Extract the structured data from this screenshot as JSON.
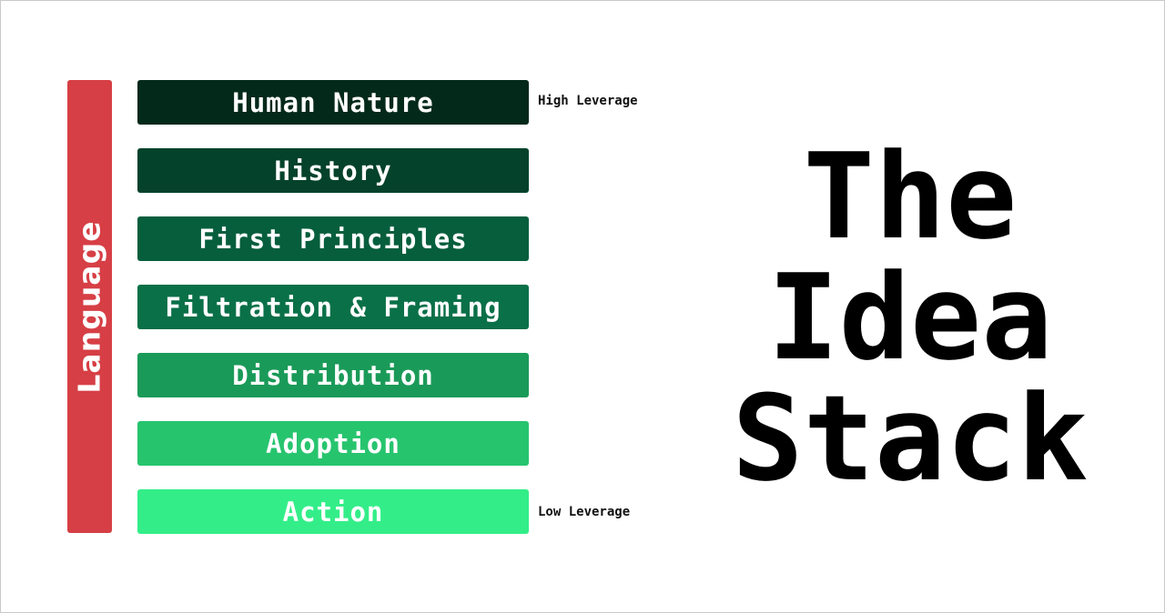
{
  "side_label": {
    "text": "Language",
    "color": "#d63f45"
  },
  "layers": [
    {
      "label": "Human Nature",
      "color": "#03291b"
    },
    {
      "label": "History",
      "color": "#04422b"
    },
    {
      "label": "First Principles",
      "color": "#065e3c"
    },
    {
      "label": "Filtration & Framing",
      "color": "#0a7048"
    },
    {
      "label": "Distribution",
      "color": "#1a9a58"
    },
    {
      "label": "Adoption",
      "color": "#27c46e"
    },
    {
      "label": "Action",
      "color": "#33ee88"
    }
  ],
  "leverage": {
    "high": "High Leverage",
    "low": "Low Leverage"
  },
  "title_lines": [
    "The",
    "Idea",
    "Stack"
  ]
}
